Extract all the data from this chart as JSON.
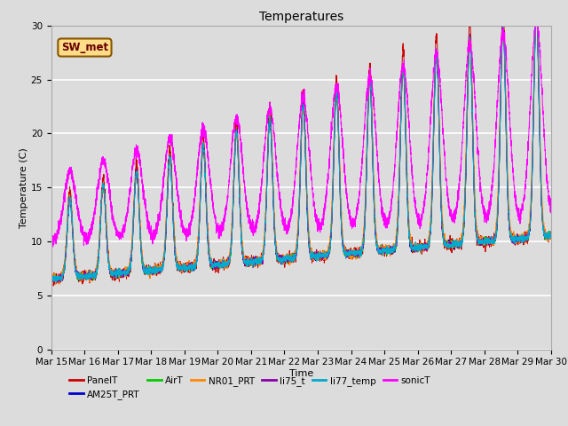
{
  "title": "Temperatures",
  "xlabel": "Time",
  "ylabel": "Temperature (C)",
  "ylim": [
    0,
    30
  ],
  "background_color": "#dcdcdc",
  "plot_bg_color": "#dcdcdc",
  "grid_color": "white",
  "annotation_text": "SW_met",
  "annotation_box_color": "#ffdd88",
  "annotation_border_color": "#885500",
  "series": [
    "PanelT",
    "AM25T_PRT",
    "AirT",
    "NR01_PRT",
    "li75_t",
    "li77_temp",
    "sonicT"
  ],
  "colors": [
    "#cc0000",
    "#0000cc",
    "#00cc00",
    "#ff8800",
    "#8800aa",
    "#00aacc",
    "#ff00ff"
  ],
  "tick_labels": [
    "Mar 15",
    "Mar 16",
    "Mar 17",
    "Mar 18",
    "Mar 19",
    "Mar 20",
    "Mar 21",
    "Mar 22",
    "Mar 23",
    "Mar 24",
    "Mar 25",
    "Mar 26",
    "Mar 27",
    "Mar 28",
    "Mar 29",
    "Mar 30"
  ],
  "fontsize_title": 10,
  "fontsize_axis": 8,
  "fontsize_legend": 7.5,
  "fontsize_ticks": 7.5
}
